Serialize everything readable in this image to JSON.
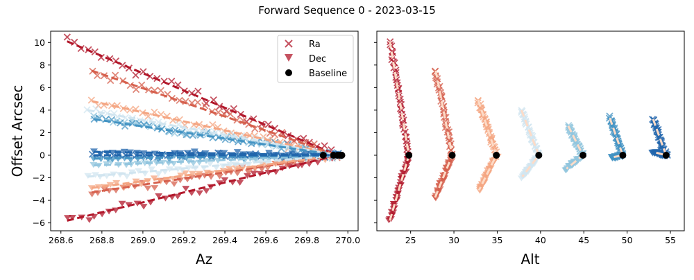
{
  "suptitle": "Forward Sequence 0 - 2023-03-15",
  "colors": {
    "ra": "#b2182b",
    "dec": "#b2182b",
    "baseline": "#000000",
    "sequence": [
      "#b2182b",
      "#d6604d",
      "#f4a582",
      "#d1e5f0",
      "#92c5de",
      "#4393c3",
      "#2166ac"
    ],
    "fit_left": [
      "#b2182b",
      "#d6604d",
      "#f4a582",
      "#d1e5f0",
      "#92c5de",
      "#4393c3",
      "#2166ac"
    ],
    "fit_right": "#fddbc7"
  },
  "chart_data": [
    {
      "type": "scatter",
      "xlabel": "Az",
      "ylabel": "Offset Arcsec",
      "xlim": [
        268.55,
        270.05
      ],
      "ylim": [
        -6.7,
        11.0
      ],
      "xticks": [
        "268.6",
        "268.8",
        "269.0",
        "269.2",
        "269.4",
        "269.6",
        "269.8",
        "270.0"
      ],
      "yticks": [
        "−6",
        "−4",
        "−2",
        "0",
        "2",
        "4",
        "6",
        "8",
        "10"
      ],
      "legend": {
        "placement": "top-right",
        "entries": [
          {
            "label": "Ra",
            "marker": "x"
          },
          {
            "label": "Dec",
            "marker": "triangle-down"
          },
          {
            "label": "Baseline",
            "marker": "circle"
          }
        ]
      },
      "series": [
        {
          "ra": {
            "x": [
              268.63,
              269.95
            ],
            "y": [
              10.1,
              0.0
            ]
          },
          "dec": {
            "x": [
              268.63,
              269.95
            ],
            "y": [
              -5.8,
              0.0
            ]
          }
        },
        {
          "ra": {
            "x": [
              268.75,
              269.95
            ],
            "y": [
              7.5,
              0.0
            ]
          },
          "dec": {
            "x": [
              268.75,
              269.95
            ],
            "y": [
              -3.3,
              0.0
            ]
          }
        },
        {
          "ra": {
            "x": [
              268.75,
              269.95
            ],
            "y": [
              4.8,
              0.0
            ]
          },
          "dec": {
            "x": [
              268.75,
              269.95
            ],
            "y": [
              -2.9,
              0.0
            ]
          }
        },
        {
          "ra": {
            "x": [
              268.73,
              269.95
            ],
            "y": [
              4.0,
              0.0
            ]
          },
          "dec": {
            "x": [
              268.73,
              269.95
            ],
            "y": [
              -1.9,
              0.0
            ]
          }
        },
        {
          "ra": {
            "x": [
              268.76,
              269.95
            ],
            "y": [
              3.3,
              0.0
            ]
          },
          "dec": {
            "x": [
              268.76,
              269.95
            ],
            "y": [
              -0.9,
              0.0
            ]
          }
        },
        {
          "ra": {
            "x": [
              268.76,
              269.95
            ],
            "y": [
              3.2,
              0.0
            ]
          },
          "dec": {
            "x": [
              268.76,
              269.95
            ],
            "y": [
              -0.3,
              0.0
            ]
          }
        },
        {
          "ra": {
            "x": [
              268.76,
              269.95
            ],
            "y": [
              0.0,
              0.0
            ]
          },
          "dec": {
            "x": [
              268.76,
              269.95
            ],
            "y": [
              0.3,
              0.0
            ]
          }
        }
      ],
      "baseline": {
        "x": [
          269.88,
          269.93,
          269.95,
          269.96,
          269.97,
          269.97,
          269.97
        ],
        "y": [
          0,
          0,
          0,
          0,
          0,
          0,
          0
        ]
      }
    },
    {
      "type": "scatter",
      "xlabel": "Alt",
      "ylabel": "",
      "xlim": [
        21.1,
        56.6
      ],
      "ylim": [
        -6.7,
        11.0
      ],
      "xticks": [
        "25",
        "30",
        "35",
        "40",
        "45",
        "50",
        "55"
      ],
      "series": [
        {
          "alt_top": 22.6,
          "y_top": 10.1,
          "alt_bottom": 22.6,
          "y_bottom": -5.8,
          "alt_end": 24.8
        },
        {
          "alt_top": 27.9,
          "y_top": 7.5,
          "alt_bottom": 27.8,
          "y_bottom": -3.8,
          "alt_end": 29.8
        },
        {
          "alt_top": 32.8,
          "y_top": 4.9,
          "alt_bottom": 32.9,
          "y_bottom": -3.1,
          "alt_end": 34.9
        },
        {
          "alt_top": 37.8,
          "y_top": 4.0,
          "alt_bottom": 37.9,
          "y_bottom": -1.9,
          "alt_end": 39.8
        },
        {
          "alt_top": 43.2,
          "y_top": 2.6,
          "alt_bottom": 43.0,
          "y_bottom": -1.2,
          "alt_end": 44.9
        },
        {
          "alt_top": 48.0,
          "y_top": 3.3,
          "alt_bottom": 48.2,
          "y_bottom": -0.2,
          "alt_end": 49.5
        },
        {
          "alt_top": 53.0,
          "y_top": 3.2,
          "alt_bottom": 53.0,
          "y_bottom": 0.3,
          "alt_end": 54.5
        }
      ]
    }
  ]
}
